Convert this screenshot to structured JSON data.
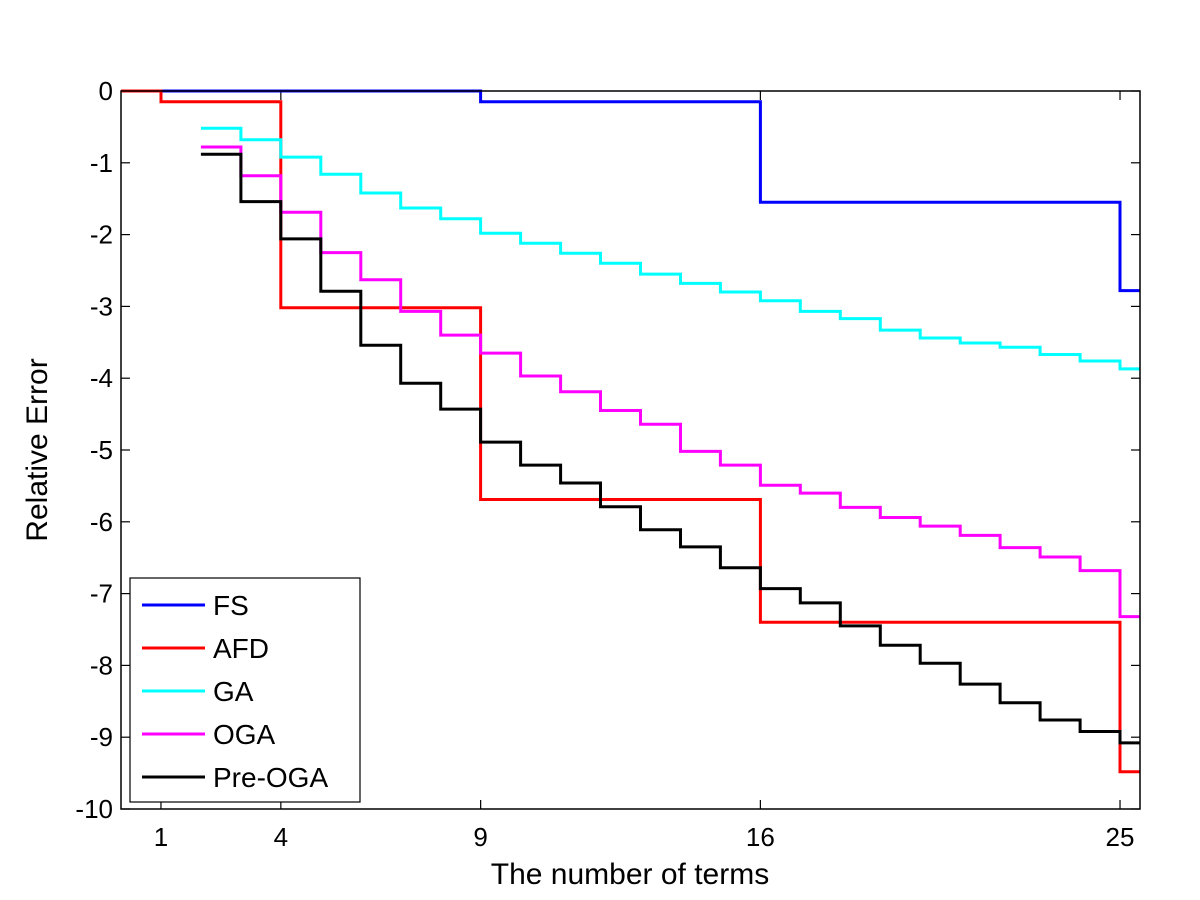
{
  "chart_data": {
    "type": "line",
    "step": true,
    "title": "",
    "xlabel": "The number of terms",
    "ylabel": "Relative Error",
    "xlim": [
      0,
      25.5
    ],
    "ylim": [
      -10,
      0
    ],
    "xticks": [
      1,
      4,
      9,
      16,
      25
    ],
    "xtick_labels": [
      "1",
      "4",
      "9",
      "16",
      "25"
    ],
    "yticks": [
      0,
      -1,
      -2,
      -3,
      -4,
      -5,
      -6,
      -7,
      -8,
      -9,
      -10
    ],
    "ytick_labels": [
      "0",
      "-1",
      "-2",
      "-3",
      "-4",
      "-5",
      "-6",
      "-7",
      "-8",
      "-9",
      "-10"
    ],
    "grid": false,
    "legend_position": "bottom-left",
    "series": [
      {
        "name": "FS",
        "color": "#0000ff",
        "steps": [
          [
            0,
            0
          ],
          [
            9,
            -0.15
          ],
          [
            16,
            -1.55
          ],
          [
            25,
            -2.78
          ]
        ],
        "x_end": 25.5
      },
      {
        "name": "AFD",
        "color": "#ff0000",
        "steps": [
          [
            0,
            0
          ],
          [
            1,
            -0.15
          ],
          [
            4,
            -3.02
          ],
          [
            9,
            -5.69
          ],
          [
            16,
            -7.4
          ],
          [
            25,
            -9.48
          ]
        ],
        "x_end": 25.5
      },
      {
        "name": "GA",
        "color": "#00ffff",
        "steps": [
          [
            2,
            -0.52
          ],
          [
            3,
            -0.68
          ],
          [
            4,
            -0.92
          ],
          [
            5,
            -1.16
          ],
          [
            6,
            -1.42
          ],
          [
            7,
            -1.63
          ],
          [
            8,
            -1.78
          ],
          [
            9,
            -1.98
          ],
          [
            10,
            -2.12
          ],
          [
            11,
            -2.26
          ],
          [
            12,
            -2.4
          ],
          [
            13,
            -2.55
          ],
          [
            14,
            -2.68
          ],
          [
            15,
            -2.8
          ],
          [
            16,
            -2.92
          ],
          [
            17,
            -3.07
          ],
          [
            18,
            -3.17
          ],
          [
            19,
            -3.33
          ],
          [
            20,
            -3.44
          ],
          [
            21,
            -3.51
          ],
          [
            22,
            -3.57
          ],
          [
            23,
            -3.67
          ],
          [
            24,
            -3.76
          ],
          [
            25,
            -3.87
          ]
        ],
        "x_end": 25.5
      },
      {
        "name": "OGA",
        "color": "#ff00ff",
        "steps": [
          [
            2,
            -0.78
          ],
          [
            3,
            -1.18
          ],
          [
            4,
            -1.69
          ],
          [
            5,
            -2.25
          ],
          [
            6,
            -2.63
          ],
          [
            7,
            -3.07
          ],
          [
            8,
            -3.4
          ],
          [
            9,
            -3.65
          ],
          [
            10,
            -3.97
          ],
          [
            11,
            -4.19
          ],
          [
            12,
            -4.45
          ],
          [
            13,
            -4.64
          ],
          [
            14,
            -5.02
          ],
          [
            15,
            -5.21
          ],
          [
            16,
            -5.49
          ],
          [
            17,
            -5.6
          ],
          [
            18,
            -5.8
          ],
          [
            19,
            -5.94
          ],
          [
            20,
            -6.06
          ],
          [
            21,
            -6.19
          ],
          [
            22,
            -6.36
          ],
          [
            23,
            -6.49
          ],
          [
            24,
            -6.68
          ],
          [
            25,
            -7.32
          ]
        ],
        "x_end": 25.5
      },
      {
        "name": "Pre-OGA",
        "color": "#000000",
        "steps": [
          [
            2,
            -0.88
          ],
          [
            3,
            -1.54
          ],
          [
            4,
            -2.06
          ],
          [
            5,
            -2.79
          ],
          [
            6,
            -3.54
          ],
          [
            7,
            -4.07
          ],
          [
            8,
            -4.43
          ],
          [
            9,
            -4.89
          ],
          [
            10,
            -5.21
          ],
          [
            11,
            -5.46
          ],
          [
            12,
            -5.79
          ],
          [
            13,
            -6.11
          ],
          [
            14,
            -6.35
          ],
          [
            15,
            -6.64
          ],
          [
            16,
            -6.93
          ],
          [
            17,
            -7.13
          ],
          [
            18,
            -7.45
          ],
          [
            19,
            -7.72
          ],
          [
            20,
            -7.97
          ],
          [
            21,
            -8.26
          ],
          [
            22,
            -8.52
          ],
          [
            23,
            -8.76
          ],
          [
            24,
            -8.92
          ],
          [
            25,
            -9.08
          ]
        ],
        "x_end": 25.5
      }
    ]
  }
}
